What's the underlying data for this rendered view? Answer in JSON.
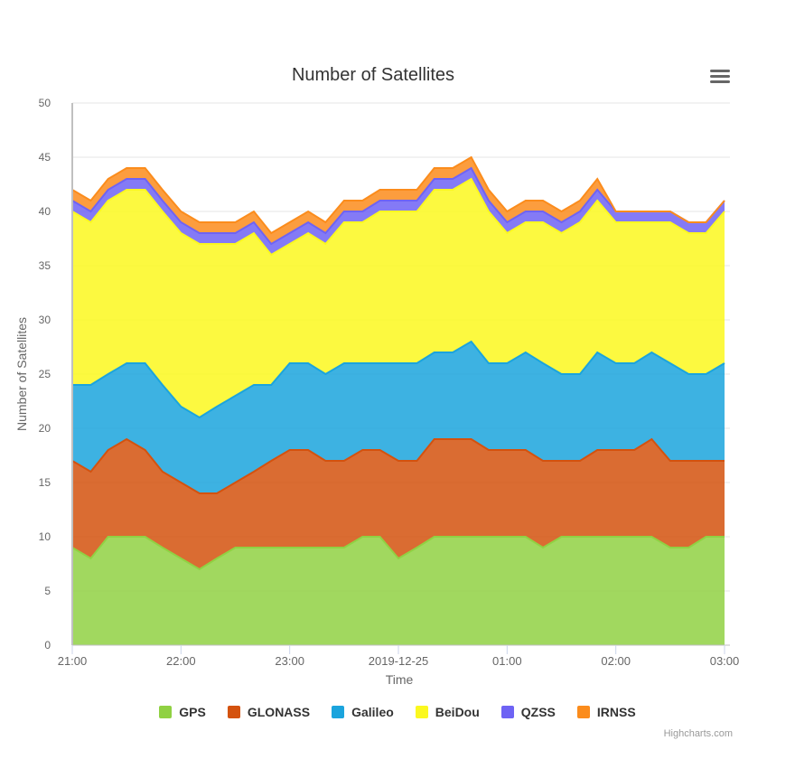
{
  "chart_data": {
    "type": "area",
    "stacked": true,
    "title": "Number of Satellites",
    "xlabel": "Time",
    "ylabel": "Number of Satellites",
    "ylim": [
      0,
      50
    ],
    "yticks": [
      "0",
      "5",
      "10",
      "15",
      "20",
      "25",
      "30",
      "35",
      "40",
      "45",
      "50"
    ],
    "xticks": [
      {
        "label": "21:00",
        "hour": 0
      },
      {
        "label": "22:00",
        "hour": 1
      },
      {
        "label": "23:00",
        "hour": 2
      },
      {
        "label": "2019-12-25",
        "hour": 3
      },
      {
        "label": "01:00",
        "hour": 4
      },
      {
        "label": "02:00",
        "hour": 5
      },
      {
        "label": "03:00",
        "hour": 6
      }
    ],
    "x_hours": [
      0,
      0.17,
      0.33,
      0.5,
      0.67,
      0.83,
      1.0,
      1.17,
      1.33,
      1.5,
      1.67,
      1.83,
      2.0,
      2.17,
      2.33,
      2.5,
      2.67,
      2.83,
      3.0,
      3.17,
      3.33,
      3.5,
      3.67,
      3.83,
      4.0,
      4.17,
      4.33,
      4.5,
      4.67,
      4.83,
      5.0,
      5.17,
      5.33,
      5.5,
      5.67,
      5.83,
      6.0
    ],
    "grid": true,
    "legend_position": "bottom-center",
    "series": [
      {
        "name": "GPS",
        "color": "#90d143",
        "values": [
          9,
          8,
          10,
          10,
          10,
          9,
          8,
          7,
          8,
          9,
          9,
          9,
          9,
          9,
          9,
          9,
          10,
          10,
          8,
          9,
          10,
          10,
          10,
          10,
          10,
          10,
          9,
          10,
          10,
          10,
          10,
          10,
          10,
          9,
          9,
          10,
          10
        ]
      },
      {
        "name": "GLONASS",
        "color": "#d4520e",
        "values": [
          8,
          8,
          8,
          9,
          8,
          7,
          7,
          7,
          6,
          6,
          7,
          8,
          9,
          9,
          8,
          8,
          8,
          8,
          9,
          8,
          9,
          9,
          9,
          8,
          8,
          8,
          8,
          7,
          7,
          8,
          8,
          8,
          9,
          8,
          8,
          7,
          7
        ]
      },
      {
        "name": "Galileo",
        "color": "#1ba4dd",
        "values": [
          7,
          8,
          7,
          7,
          8,
          8,
          7,
          7,
          8,
          8,
          8,
          7,
          8,
          8,
          8,
          9,
          8,
          8,
          9,
          9,
          8,
          8,
          9,
          8,
          8,
          9,
          9,
          8,
          8,
          9,
          8,
          8,
          8,
          9,
          8,
          8,
          9
        ]
      },
      {
        "name": "BeiDou",
        "color": "#fbf81f",
        "values": [
          16,
          15,
          16,
          16,
          16,
          16,
          16,
          16,
          15,
          14,
          14,
          12,
          11,
          12,
          12,
          13,
          13,
          14,
          14,
          14,
          15,
          15,
          15,
          14,
          12,
          12,
          13,
          13,
          14,
          14,
          13,
          13,
          12,
          13,
          13,
          13,
          14
        ]
      },
      {
        "name": "QZSS",
        "color": "#6e63f4",
        "values": [
          1,
          1,
          1,
          1,
          1,
          1,
          1,
          1,
          1,
          1,
          1,
          1,
          1,
          1,
          1,
          1,
          1,
          1,
          1,
          1,
          1,
          1,
          1,
          1,
          1,
          1,
          1,
          1,
          1,
          1,
          1,
          1,
          1,
          1,
          1,
          1,
          1
        ]
      },
      {
        "name": "IRNSS",
        "color": "#fb8c1c",
        "values": [
          1,
          1,
          1,
          1,
          1,
          1,
          1,
          1,
          1,
          1,
          1,
          1,
          1,
          1,
          1,
          1,
          1,
          1,
          1,
          1,
          1,
          1,
          1,
          1,
          1,
          1,
          1,
          1,
          1,
          1,
          0,
          0,
          0,
          0,
          0,
          0,
          0
        ]
      }
    ]
  },
  "credit": "Highcharts.com"
}
